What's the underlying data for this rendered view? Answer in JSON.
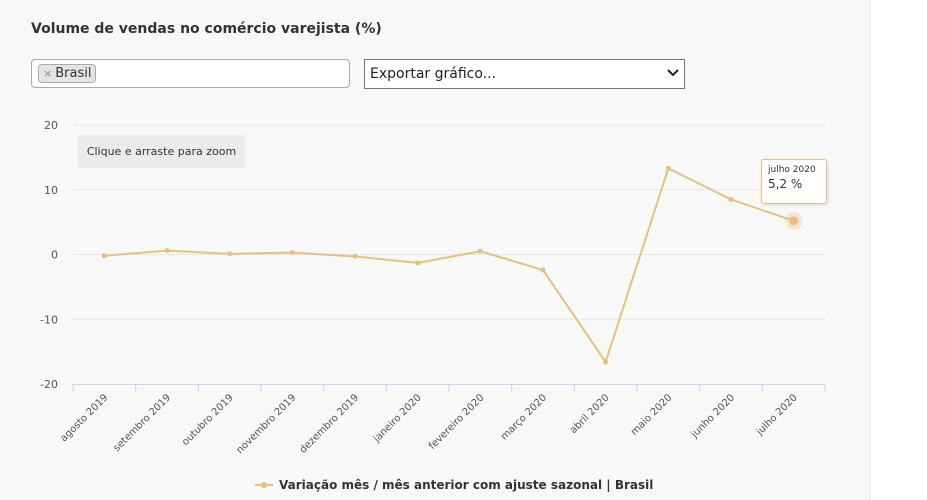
{
  "title": "Volume de vendas no comércio varejista (%)",
  "filter": {
    "selected": "Brasil",
    "remove_glyph": "×"
  },
  "export": {
    "label": "Exportar gráfico..."
  },
  "zoom_hint": "Clique e arraste para zoom",
  "tooltip": {
    "date": "julho 2020",
    "value": "5,2 %"
  },
  "chart_data": {
    "type": "line",
    "x": [
      "agosto 2019",
      "setembro 2019",
      "outubro 2019",
      "novembro 2019",
      "dezembro 2019",
      "janeiro 2020",
      "fevereiro 2020",
      "março 2020",
      "abril 2020",
      "maio 2020",
      "junho 2020",
      "julho 2020"
    ],
    "series": [
      {
        "name": "Variação mês / mês anterior com ajuste sazonal | Brasil",
        "values": [
          -0.2,
          0.6,
          0.1,
          0.3,
          -0.3,
          -1.3,
          0.5,
          -2.4,
          -16.6,
          13.3,
          8.5,
          5.2
        ]
      }
    ],
    "ylim": [
      -20,
      20
    ],
    "yticks": [
      -20,
      -10,
      0,
      10,
      20
    ],
    "grid": true,
    "legend": "bottom",
    "highlighted_index": 11,
    "color": "#e8c07d"
  }
}
